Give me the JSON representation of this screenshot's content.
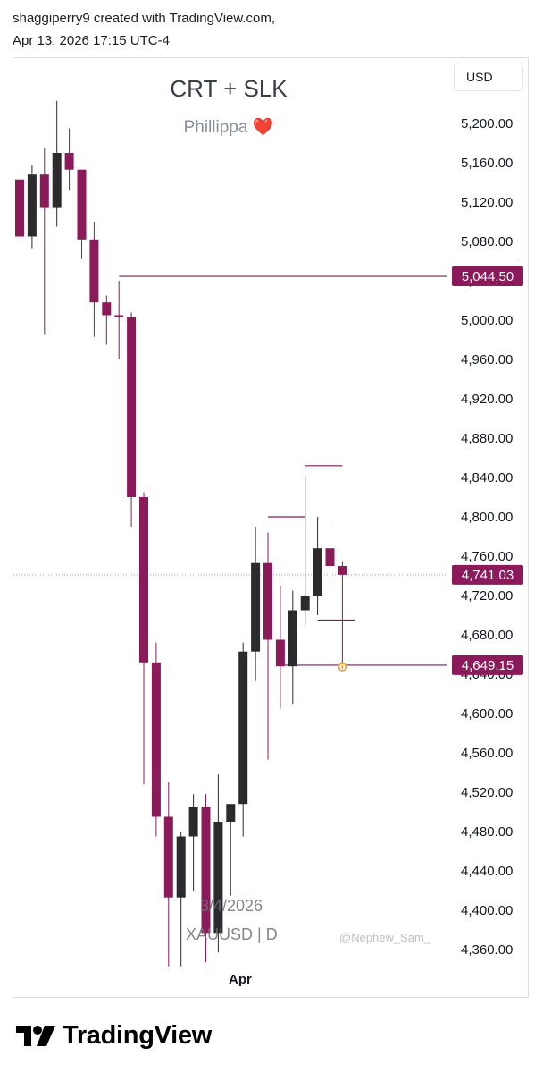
{
  "header": {
    "author_line": "shaggiperry9 created with TradingView.com,",
    "date_line": "Apr 13, 2026 17:15 UTC-4"
  },
  "chart": {
    "title": "CRT + SLK",
    "subtitle": "Phillippa",
    "subtitle_emoji": "❤️",
    "currency": "USD",
    "watermark_date": "3/4/2026",
    "watermark_symbol": "XAUUSD | D",
    "watermark_handle": "@Nephew_Sam_",
    "x_label": "Apr"
  },
  "footer": {
    "brand": "TradingView"
  },
  "colors": {
    "bull": "#2b2b2e",
    "bear": "#8b1a5a",
    "line": "#7a1e55",
    "grid": "#9aa0ad"
  },
  "chart_data": {
    "type": "candlestick",
    "symbol": "XAUUSD",
    "timeframe": "D",
    "y_ticks": [
      5200,
      5160,
      5120,
      5080,
      5040,
      5000,
      4960,
      4920,
      4880,
      4840,
      4800,
      4760,
      4720,
      4680,
      4640,
      4600,
      4560,
      4520,
      4480,
      4440,
      4400,
      4360
    ],
    "y_tick_labels": [
      "5,200.00",
      "5,160.00",
      "5,120.00",
      "5,080.00",
      "5,040.00",
      "5,000.00",
      "4,960.00",
      "4,920.00",
      "4,880.00",
      "4,840.00",
      "4,800.00",
      "4,760.00",
      "4,720.00",
      "4,680.00",
      "4,640.00",
      "4,600.00",
      "4,560.00",
      "4,520.00",
      "4,480.00",
      "4,440.00",
      "4,400.00",
      "4,360.00"
    ],
    "price_markers": [
      {
        "label": "5,044.50",
        "value": 5044.5
      },
      {
        "label": "4,741.03",
        "value": 4741.03
      },
      {
        "label": "4,649.15",
        "value": 4649.15
      }
    ],
    "candles": [
      {
        "o": 5143,
        "h": 5143,
        "l": 5085,
        "c": 5085
      },
      {
        "o": 5085,
        "h": 5158,
        "l": 5073,
        "c": 5148
      },
      {
        "o": 5148,
        "h": 5175,
        "l": 4985,
        "c": 5114
      },
      {
        "o": 5114,
        "h": 5223,
        "l": 5095,
        "c": 5170
      },
      {
        "o": 5170,
        "h": 5195,
        "l": 5132,
        "c": 5153
      },
      {
        "o": 5153,
        "h": 5153,
        "l": 5062,
        "c": 5082
      },
      {
        "o": 5082,
        "h": 5100,
        "l": 4983,
        "c": 5018
      },
      {
        "o": 5018,
        "h": 5025,
        "l": 4975,
        "c": 5005
      },
      {
        "o": 5005,
        "h": 5040,
        "l": 4960,
        "c": 5003
      },
      {
        "o": 5003,
        "h": 5008,
        "l": 4790,
        "c": 4820
      },
      {
        "o": 4820,
        "h": 4825,
        "l": 4528,
        "c": 4652
      },
      {
        "o": 4652,
        "h": 4672,
        "l": 4475,
        "c": 4495
      },
      {
        "o": 4495,
        "h": 4530,
        "l": 4343,
        "c": 4413
      },
      {
        "o": 4413,
        "h": 4480,
        "l": 4343,
        "c": 4475
      },
      {
        "o": 4475,
        "h": 4518,
        "l": 4420,
        "c": 4505
      },
      {
        "o": 4505,
        "h": 4518,
        "l": 4347,
        "c": 4377
      },
      {
        "o": 4377,
        "h": 4538,
        "l": 4357,
        "c": 4490
      },
      {
        "o": 4490,
        "h": 4500,
        "l": 4415,
        "c": 4508
      },
      {
        "o": 4508,
        "h": 4672,
        "l": 4475,
        "c": 4663
      },
      {
        "o": 4663,
        "h": 4790,
        "l": 4633,
        "c": 4753
      },
      {
        "o": 4753,
        "h": 4784,
        "l": 4553,
        "c": 4675
      },
      {
        "o": 4675,
        "h": 4730,
        "l": 4605,
        "c": 4648
      },
      {
        "o": 4648,
        "h": 4725,
        "l": 4610,
        "c": 4705
      },
      {
        "o": 4705,
        "h": 4840,
        "l": 4690,
        "c": 4720
      },
      {
        "o": 4720,
        "h": 4800,
        "l": 4700,
        "c": 4768
      },
      {
        "o": 4768,
        "h": 4792,
        "l": 4730,
        "c": 4750
      },
      {
        "o": 4750,
        "h": 4755,
        "l": 4649.15,
        "c": 4741.03
      }
    ],
    "levels": [
      {
        "value": 5044.5,
        "from_candle": 8,
        "to_axis": true
      },
      {
        "value": 4852,
        "from_candle": 23,
        "to_candle": 26
      },
      {
        "value": 4800,
        "from_candle": 20,
        "to_candle": 23
      },
      {
        "value": 4695,
        "from_candle": 24,
        "to_candle": 27
      },
      {
        "value": 4649.15,
        "from_candle": 21,
        "to_axis": true
      }
    ],
    "current_price": 4741.03
  }
}
